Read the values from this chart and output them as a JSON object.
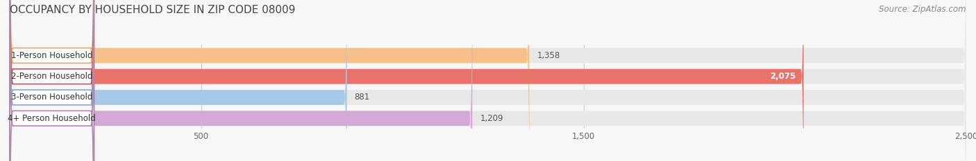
{
  "title": "OCCUPANCY BY HOUSEHOLD SIZE IN ZIP CODE 08009",
  "source": "Source: ZipAtlas.com",
  "categories": [
    "1-Person Household",
    "2-Person Household",
    "3-Person Household",
    "4+ Person Household"
  ],
  "values": [
    1358,
    2075,
    881,
    1209
  ],
  "bar_colors": [
    "#f5c08a",
    "#e8736a",
    "#a8c8e8",
    "#d4a8d4"
  ],
  "bar_bg_color": "#e8e8e8",
  "label_box_colors": [
    "#f0a060",
    "#cc5050",
    "#88aacc",
    "#b088b0"
  ],
  "value_inside_bar": [
    false,
    true,
    false,
    false
  ],
  "xlim": [
    0,
    2500
  ],
  "xticks": [
    500,
    1500,
    2500
  ],
  "background_color": "#f7f7f7",
  "title_fontsize": 11,
  "source_fontsize": 8.5,
  "label_fontsize": 8.5,
  "value_fontsize": 8.5,
  "tick_fontsize": 8.5
}
